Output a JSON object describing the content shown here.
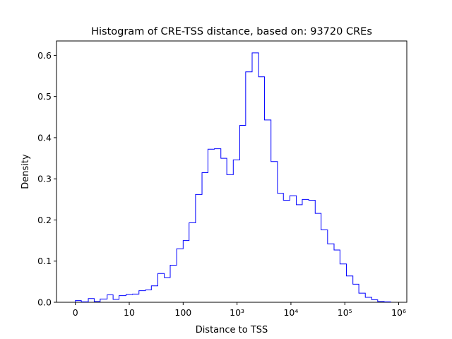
{
  "chart_data": {
    "type": "histogram",
    "title": "Histogram of CRE-TSS distance, based on: 93720 CREs",
    "xlabel": "Distance to TSS",
    "ylabel": "Density",
    "x_scale": "symlog",
    "xlim": [
      -0.35,
      6.15
    ],
    "ylim": [
      0,
      0.635
    ],
    "x_ticks": [
      {
        "label": "0",
        "pos": 0
      },
      {
        "label": "10",
        "pos": 1
      },
      {
        "label": "100",
        "pos": 2
      },
      {
        "label": "10³",
        "pos": 3
      },
      {
        "label": "10⁴",
        "pos": 4
      },
      {
        "label": "10⁵",
        "pos": 5
      },
      {
        "label": "10⁶",
        "pos": 6
      }
    ],
    "y_ticks": [
      0.0,
      0.1,
      0.2,
      0.3,
      0.4,
      0.5,
      0.6
    ],
    "y_tick_labels": [
      "0.0",
      "0.1",
      "0.2",
      "0.3",
      "0.4",
      "0.5",
      "0.6"
    ],
    "line_color": "#0000ff",
    "grid": false,
    "series": [
      {
        "bin_edges": [
          0.0,
          0.11,
          0.24,
          0.35,
          0.46,
          0.59,
          0.7,
          0.81,
          0.94,
          1.06,
          1.18,
          1.3,
          1.41,
          1.53,
          1.65,
          1.76,
          1.88,
          2.0,
          2.11,
          2.23,
          2.35,
          2.46,
          2.58,
          2.7,
          2.81,
          2.93,
          3.05,
          3.16,
          3.28,
          3.4,
          3.51,
          3.63,
          3.75,
          3.86,
          3.98,
          4.1,
          4.21,
          4.33,
          4.45,
          4.56,
          4.68,
          4.8,
          4.91,
          5.03,
          5.15,
          5.26,
          5.38,
          5.5,
          5.61,
          5.73,
          5.85
        ],
        "density": [
          0.004,
          0.001,
          0.009,
          0.002,
          0.008,
          0.018,
          0.007,
          0.016,
          0.019,
          0.02,
          0.028,
          0.03,
          0.04,
          0.07,
          0.06,
          0.09,
          0.13,
          0.15,
          0.193,
          0.262,
          0.315,
          0.372,
          0.373,
          0.35,
          0.31,
          0.346,
          0.43,
          0.56,
          0.606,
          0.548,
          0.443,
          0.342,
          0.265,
          0.248,
          0.259,
          0.237,
          0.25,
          0.248,
          0.216,
          0.176,
          0.142,
          0.127,
          0.093,
          0.064,
          0.044,
          0.022,
          0.012,
          0.006,
          0.002,
          0.001
        ]
      }
    ]
  }
}
